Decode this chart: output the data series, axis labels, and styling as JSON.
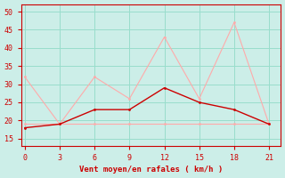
{
  "xlabel": "Vent moyen/en rafales ( km/h )",
  "x": [
    0,
    3,
    6,
    9,
    12,
    15,
    18,
    21
  ],
  "line1_y": [
    18,
    19,
    23,
    23,
    29,
    25,
    23,
    19
  ],
  "line2_y": [
    32,
    19,
    32,
    26,
    43,
    26,
    47,
    19
  ],
  "line3_y": [
    19,
    19,
    19,
    19,
    19,
    19,
    19,
    19
  ],
  "line1_color": "#cc0000",
  "line2_color": "#ffaaaa",
  "line3_color": "#ffaaaa",
  "bg_color": "#cceee8",
  "grid_color": "#99ddcc",
  "text_color": "#cc0000",
  "ylim": [
    13,
    52
  ],
  "yticks": [
    15,
    20,
    25,
    30,
    35,
    40,
    45,
    50
  ],
  "xticks": [
    0,
    3,
    6,
    9,
    12,
    15,
    18,
    21
  ],
  "xlim": [
    -0.3,
    22
  ]
}
